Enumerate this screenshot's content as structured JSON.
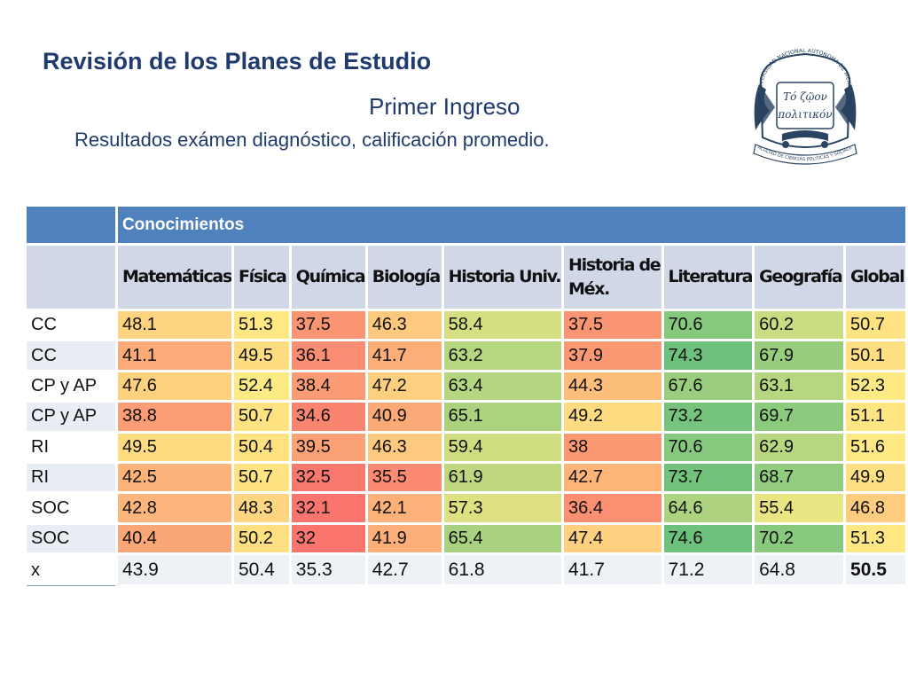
{
  "slide": {
    "title": "Revisión de los Planes de Estudio",
    "subtitle": "Primer Ingreso",
    "description": "Resultados exámen diagnóstico, calificación promedio."
  },
  "logo": {
    "top_text": "UNIVERSIDAD NACIONAL AUTONOMA DE MEXICO",
    "motto_line1": "Τό ζῷον",
    "motto_line2": "πολιτικόν",
    "bottom_text": "FACULTAD DE CIENCIAS POLITICAS Y SOCIALES"
  },
  "table": {
    "group_header": "Conocimientos",
    "columns": [
      "Matemáticas",
      "Física",
      "Química",
      "Biología",
      "Historia Univ.",
      "Historia de Méx.",
      "Literatura",
      "Geografía",
      "Global"
    ],
    "rows": [
      {
        "label": "CC",
        "values": [
          "48.1",
          "51.3",
          "37.5",
          "46.3",
          "58.4",
          "37.5",
          "70.6",
          "60.2",
          "50.7"
        ]
      },
      {
        "label": "CC",
        "values": [
          "41.1",
          "49.5",
          "36.1",
          "41.7",
          "63.2",
          "37.9",
          "74.3",
          "67.9",
          "50.1"
        ]
      },
      {
        "label": "CP y AP",
        "values": [
          "47.6",
          "52.4",
          "38.4",
          "47.2",
          "63.4",
          "44.3",
          "67.6",
          "63.1",
          "52.3"
        ]
      },
      {
        "label": "CP y AP",
        "values": [
          "38.8",
          "50.7",
          "34.6",
          "40.9",
          "65.1",
          "49.2",
          "73.2",
          "69.7",
          "51.1"
        ]
      },
      {
        "label": "RI",
        "values": [
          "49.5",
          "50.4",
          "39.5",
          "46.3",
          "59.4",
          "38",
          "70.6",
          "62.9",
          "51.6"
        ]
      },
      {
        "label": "RI",
        "values": [
          "42.5",
          "50.7",
          "32.5",
          "35.5",
          "61.9",
          "42.7",
          "73.7",
          "68.7",
          "49.9"
        ]
      },
      {
        "label": "SOC",
        "values": [
          "42.8",
          "48.3",
          "32.1",
          "42.1",
          "57.3",
          "36.4",
          "64.6",
          "55.4",
          "46.8"
        ]
      },
      {
        "label": "SOC",
        "values": [
          "40.4",
          "50.2",
          "32",
          "41.9",
          "65.4",
          "47.4",
          "74.6",
          "70.2",
          "51.3"
        ]
      }
    ],
    "average_row": {
      "label": "x",
      "values": [
        "43.9",
        "50.4",
        "35.3",
        "42.7",
        "61.8",
        "41.7",
        "71.2",
        "64.8",
        "50.5"
      ]
    }
  },
  "colors": {
    "header_blue": "#4f81bd",
    "header_light": "#d0d8e8",
    "title_navy": "#1f3a6e",
    "scale_low": "#f8696b",
    "scale_mid": "#ffeb84",
    "scale_high": "#63be7b"
  }
}
